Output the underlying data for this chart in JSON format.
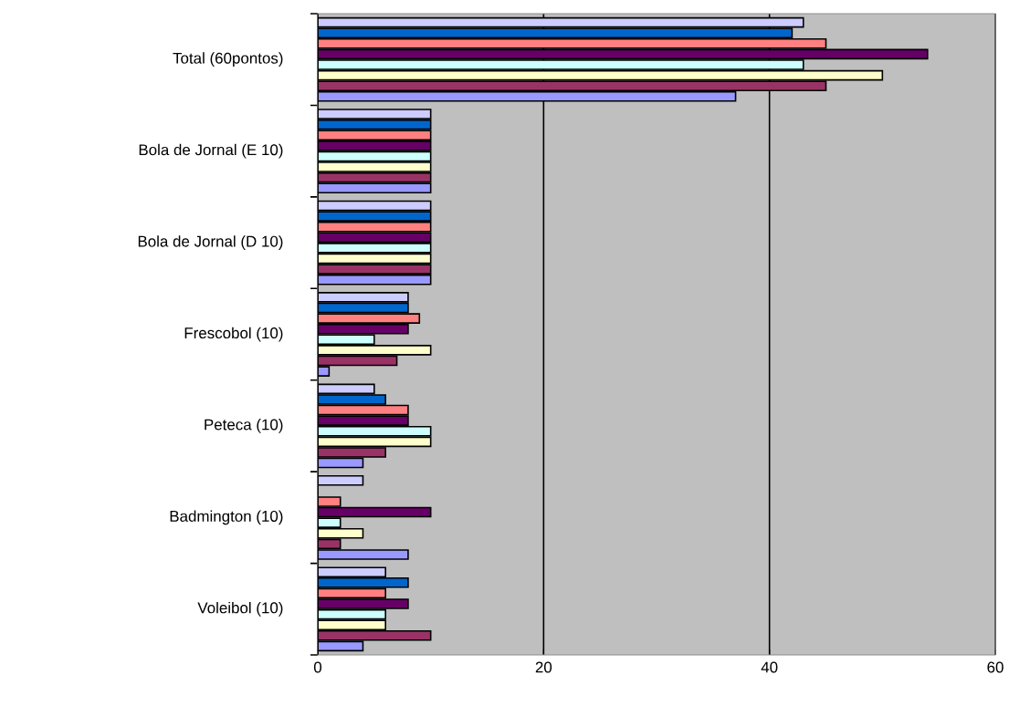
{
  "chart_data": {
    "type": "bar",
    "orientation": "horizontal",
    "categories": [
      "Total (60pontos)",
      "Bola de Jornal (E 10)",
      "Bola de Jornal (D 10)",
      "Frescobol (10)",
      "Peteca (10)",
      "Badmington (10)",
      "Voleibol (10)"
    ],
    "series": [
      {
        "color": "#ccccff",
        "values": [
          43,
          10,
          10,
          8,
          5,
          4,
          6
        ]
      },
      {
        "color": "#0066cc",
        "values": [
          42,
          10,
          10,
          8,
          6,
          0,
          8
        ]
      },
      {
        "color": "#ff8080",
        "values": [
          45,
          10,
          10,
          9,
          8,
          2,
          6
        ]
      },
      {
        "color": "#660066",
        "values": [
          54,
          10,
          10,
          8,
          8,
          10,
          8
        ]
      },
      {
        "color": "#ccffff",
        "values": [
          43,
          10,
          10,
          5,
          10,
          2,
          6
        ]
      },
      {
        "color": "#ffffcc",
        "values": [
          50,
          10,
          10,
          10,
          10,
          4,
          6
        ]
      },
      {
        "color": "#993366",
        "values": [
          45,
          10,
          10,
          7,
          6,
          2,
          10
        ]
      },
      {
        "color": "#9999ff",
        "values": [
          37,
          10,
          10,
          1,
          4,
          8,
          4
        ]
      }
    ],
    "xlim": [
      0,
      60
    ],
    "xticks": [
      0,
      20,
      40,
      60
    ],
    "grid": "x"
  }
}
